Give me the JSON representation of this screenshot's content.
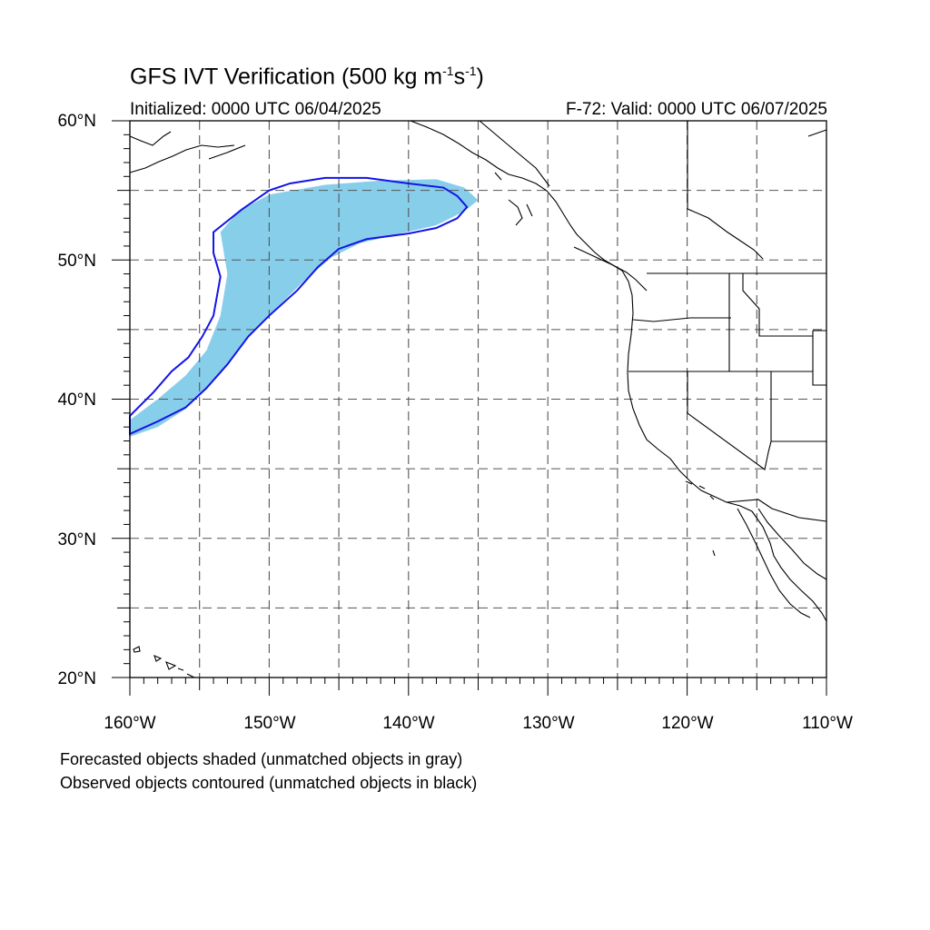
{
  "title": {
    "main": "GFS IVT Verification (500 kg m",
    "sup1": "-1",
    "mid": "s",
    "sup2": "-1",
    "end": ")"
  },
  "init_label": "Initialized: 0000 UTC 06/04/2025",
  "valid_label": "F-72: Valid: 0000 UTC 06/07/2025",
  "lat_labels": [
    "60°N",
    "50°N",
    "40°N",
    "30°N",
    "20°N"
  ],
  "lon_labels": [
    "160°W",
    "150°W",
    "140°W",
    "130°W",
    "120°W",
    "110°W"
  ],
  "notes": [
    "Forecasted objects shaded (unmatched objects in gray)",
    "Observed objects contoured (unmatched objects in black)"
  ],
  "colors": {
    "forecast_fill": "#87ceeb",
    "observed_contour": "#1414e6",
    "coast": "#000000",
    "grid": "#555555"
  },
  "chart_data": {
    "type": "map",
    "projection": "cylindrical-equidistant",
    "lon_range": [
      -160,
      -110
    ],
    "lat_range": [
      20,
      60
    ],
    "grid": "dashed, every 5 degrees",
    "forecast_object_matched": [
      [
        -160,
        38.5
      ],
      [
        -158,
        40
      ],
      [
        -156,
        41.7
      ],
      [
        -154.5,
        43.5
      ],
      [
        -153.5,
        46
      ],
      [
        -153,
        49
      ],
      [
        -153.5,
        52
      ],
      [
        -152.2,
        53.5
      ],
      [
        -150,
        54.7
      ],
      [
        -146,
        55.4
      ],
      [
        -142,
        55.7
      ],
      [
        -138,
        55.8
      ],
      [
        -136,
        55.2
      ],
      [
        -135,
        54.3
      ],
      [
        -136,
        53.5
      ],
      [
        -138,
        52.5
      ],
      [
        -141,
        51.8
      ],
      [
        -143.5,
        51.2
      ],
      [
        -145.5,
        50.2
      ],
      [
        -147.5,
        48.5
      ],
      [
        -149.5,
        46.5
      ],
      [
        -151.5,
        44.5
      ],
      [
        -153,
        42.5
      ],
      [
        -154.5,
        40.7
      ],
      [
        -156,
        39.3
      ],
      [
        -158,
        38
      ],
      [
        -160,
        37.3
      ]
    ],
    "observed_object_matched": [
      [
        -160,
        37.5
      ],
      [
        -158,
        38.4
      ],
      [
        -156,
        39.4
      ],
      [
        -154.5,
        40.8
      ],
      [
        -153,
        42.5
      ],
      [
        -151.5,
        44.5
      ],
      [
        -150,
        46
      ],
      [
        -148,
        47.8
      ],
      [
        -146.5,
        49.5
      ],
      [
        -145,
        50.8
      ],
      [
        -143,
        51.5
      ],
      [
        -140,
        51.9
      ],
      [
        -138,
        52.3
      ],
      [
        -136.5,
        53
      ],
      [
        -135.8,
        53.8
      ],
      [
        -136.5,
        54.6
      ],
      [
        -137.5,
        55.2
      ],
      [
        -140,
        55.5
      ],
      [
        -143,
        55.9
      ],
      [
        -146,
        55.9
      ],
      [
        -148.5,
        55.5
      ],
      [
        -150,
        55
      ],
      [
        -152,
        53.6
      ],
      [
        -154,
        52
      ],
      [
        -154,
        50.5
      ],
      [
        -153.5,
        48.8
      ],
      [
        -154,
        46
      ],
      [
        -154.8,
        44.5
      ],
      [
        -155.8,
        43
      ],
      [
        -157,
        42
      ],
      [
        -158.3,
        40.5
      ],
      [
        -160,
        38.8
      ]
    ]
  }
}
